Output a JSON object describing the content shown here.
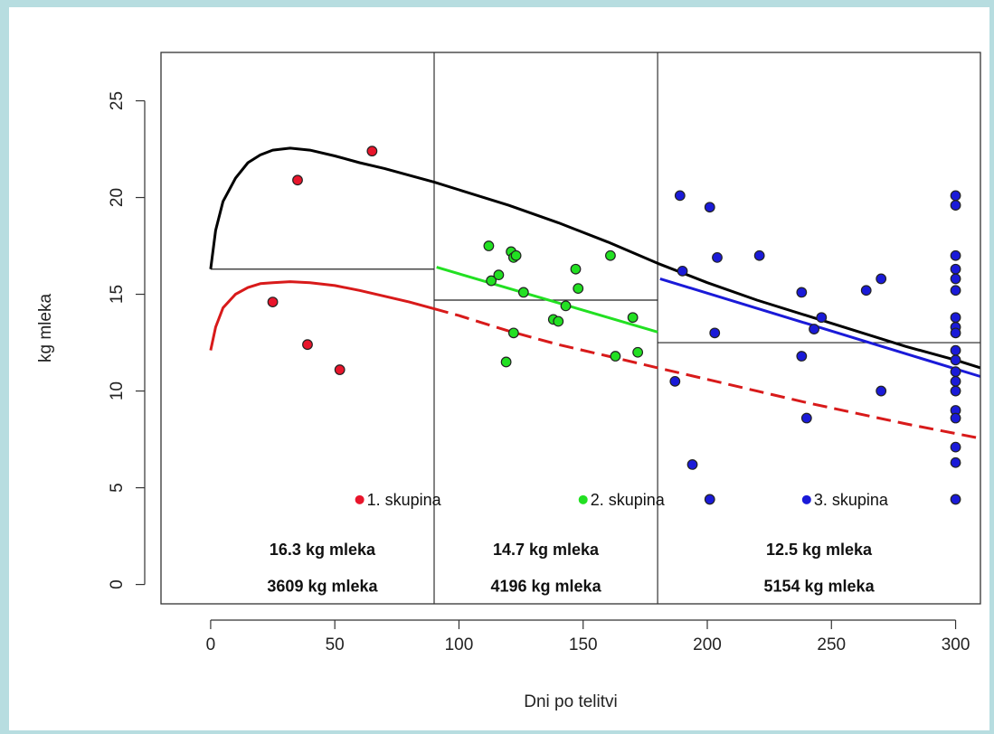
{
  "chart_data": {
    "type": "scatter",
    "title": "",
    "xlabel": "Dni po telitvi",
    "ylabel": "kg mleka",
    "xlim": [
      -20,
      310
    ],
    "ylim": [
      -1,
      27.5
    ],
    "x_ticks": [
      0,
      50,
      100,
      150,
      200,
      250,
      300
    ],
    "x_tick_labels": [
      "0",
      "50",
      "100",
      "150",
      "200",
      "250",
      "300"
    ],
    "y_ticks": [
      0,
      5,
      10,
      15,
      20,
      25
    ],
    "y_tick_labels": [
      "0",
      "5",
      "10",
      "15",
      "20",
      "25"
    ],
    "grid": false,
    "group_boundaries": [
      90,
      180
    ],
    "groups": [
      {
        "legend": "1. skupina",
        "color": "#e8152b",
        "avg_label": "16.3  kg mleka",
        "total_label": "3609  kg mleka",
        "avg_value": 16.3,
        "x_range": [
          0,
          90
        ],
        "points": [
          [
            25,
            14.6
          ],
          [
            35,
            20.9
          ],
          [
            39,
            12.4
          ],
          [
            52,
            11.1
          ],
          [
            65,
            22.4
          ]
        ]
      },
      {
        "legend": "2. skupina",
        "color": "#22e022",
        "avg_label": "14.7  kg mleka",
        "total_label": "4196  kg mleka",
        "avg_value": 14.7,
        "x_range": [
          90,
          180
        ],
        "points": [
          [
            112,
            17.5
          ],
          [
            113,
            15.7
          ],
          [
            116,
            16.0
          ],
          [
            119,
            11.5
          ],
          [
            121,
            17.2
          ],
          [
            122,
            13.0
          ],
          [
            122,
            16.9
          ],
          [
            123,
            17.0
          ],
          [
            126,
            15.1
          ],
          [
            138,
            13.7
          ],
          [
            140,
            13.6
          ],
          [
            143,
            14.4
          ],
          [
            147,
            16.3
          ],
          [
            148,
            15.3
          ],
          [
            161,
            17.0
          ],
          [
            163,
            11.8
          ],
          [
            170,
            13.8
          ],
          [
            172,
            12.0
          ]
        ]
      },
      {
        "legend": "3. skupina",
        "color": "#1a1ad8",
        "avg_label": "12.5  kg mleka",
        "total_label": "5154  kg mleka",
        "avg_value": 12.5,
        "x_range": [
          180,
          310
        ],
        "points": [
          [
            187,
            10.5
          ],
          [
            189,
            20.1
          ],
          [
            190,
            16.2
          ],
          [
            194,
            6.2
          ],
          [
            201,
            19.5
          ],
          [
            201,
            4.4
          ],
          [
            203,
            13.0
          ],
          [
            204,
            16.9
          ],
          [
            221,
            17.0
          ],
          [
            238,
            15.1
          ],
          [
            238,
            11.8
          ],
          [
            240,
            8.6
          ],
          [
            243,
            13.2
          ],
          [
            246,
            13.8
          ],
          [
            264,
            15.2
          ],
          [
            270,
            15.8
          ],
          [
            270,
            10.0
          ],
          [
            300,
            20.1
          ],
          [
            300,
            19.6
          ],
          [
            300,
            17.0
          ],
          [
            300,
            16.3
          ],
          [
            300,
            15.8
          ],
          [
            300,
            15.2
          ],
          [
            300,
            13.8
          ],
          [
            300,
            13.3
          ],
          [
            300,
            13.0
          ],
          [
            300,
            12.1
          ],
          [
            300,
            11.6
          ],
          [
            300,
            11.0
          ],
          [
            300,
            10.5
          ],
          [
            300,
            10.0
          ],
          [
            300,
            9.0
          ],
          [
            300,
            8.6
          ],
          [
            300,
            7.1
          ],
          [
            300,
            6.3
          ],
          [
            300,
            4.4
          ]
        ]
      }
    ],
    "curves": [
      {
        "name_hidden": true,
        "color": "#000000",
        "style": "solid",
        "points": [
          [
            0,
            16.3
          ],
          [
            2,
            18.3
          ],
          [
            5,
            19.8
          ],
          [
            10,
            21.0
          ],
          [
            15,
            21.8
          ],
          [
            20,
            22.2
          ],
          [
            25,
            22.45
          ],
          [
            32,
            22.55
          ],
          [
            40,
            22.45
          ],
          [
            50,
            22.15
          ],
          [
            60,
            21.8
          ],
          [
            70,
            21.5
          ],
          [
            80,
            21.15
          ],
          [
            90,
            20.8
          ],
          [
            100,
            20.4
          ],
          [
            120,
            19.6
          ],
          [
            140,
            18.7
          ],
          [
            160,
            17.7
          ],
          [
            180,
            16.6
          ],
          [
            200,
            15.6
          ],
          [
            220,
            14.7
          ],
          [
            240,
            13.9
          ],
          [
            260,
            13.1
          ],
          [
            280,
            12.3
          ],
          [
            300,
            11.6
          ],
          [
            310,
            11.2
          ]
        ]
      },
      {
        "name_hidden": true,
        "color": "#d81a1a",
        "style": "solid",
        "points": [
          [
            0,
            12.1
          ],
          [
            2,
            13.3
          ],
          [
            5,
            14.3
          ],
          [
            10,
            15.0
          ],
          [
            15,
            15.35
          ],
          [
            20,
            15.55
          ],
          [
            25,
            15.6
          ],
          [
            32,
            15.65
          ],
          [
            40,
            15.6
          ],
          [
            50,
            15.45
          ],
          [
            60,
            15.2
          ],
          [
            70,
            14.9
          ],
          [
            80,
            14.6
          ],
          [
            90,
            14.25
          ]
        ]
      },
      {
        "name_hidden": true,
        "color": "#d81a1a",
        "style": "dashed",
        "points": [
          [
            90,
            14.25
          ],
          [
            100,
            13.9
          ],
          [
            120,
            13.1
          ],
          [
            140,
            12.4
          ],
          [
            160,
            11.8
          ],
          [
            180,
            11.2
          ],
          [
            200,
            10.6
          ],
          [
            220,
            10.0
          ],
          [
            240,
            9.4
          ],
          [
            260,
            8.85
          ],
          [
            280,
            8.3
          ],
          [
            300,
            7.8
          ],
          [
            310,
            7.55
          ]
        ]
      },
      {
        "name_hidden": true,
        "color": "#22e022",
        "style": "solid",
        "points": [
          [
            91,
            16.4
          ],
          [
            180,
            13.05
          ]
        ]
      },
      {
        "name_hidden": true,
        "color": "#1a1ad8",
        "style": "solid",
        "points": [
          [
            181,
            15.8
          ],
          [
            310,
            10.75
          ]
        ]
      }
    ]
  }
}
